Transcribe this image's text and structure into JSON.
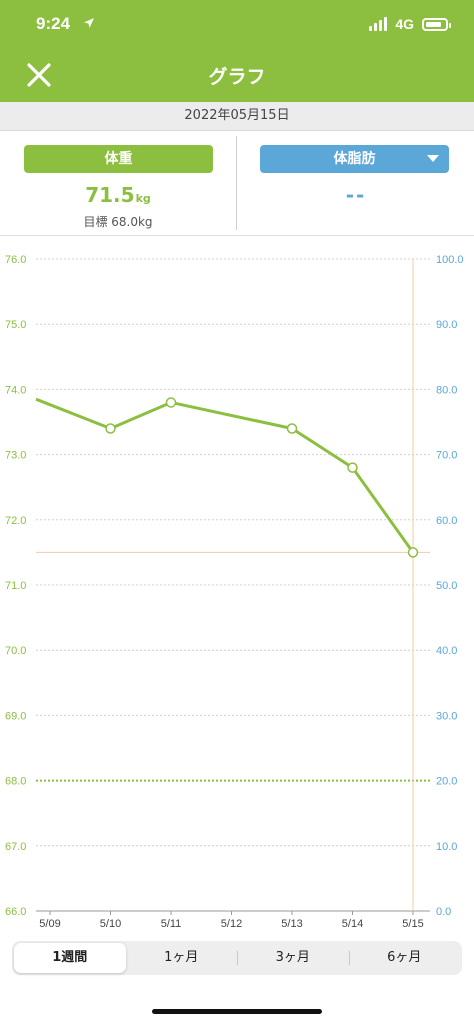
{
  "status": {
    "time": "9:24",
    "network": "4G",
    "location_icon": "location-arrow-icon"
  },
  "nav": {
    "title": "グラフ",
    "close_icon": "close-icon"
  },
  "date": "2022年05月15日",
  "weight": {
    "label": "体重",
    "value": "71.5",
    "unit": "kg",
    "goal": "目標 68.0kg"
  },
  "body_fat": {
    "label": "体脂肪",
    "value": "--",
    "dropdown_icon": "chevron-down-icon"
  },
  "colors": {
    "accent": "#8cbf3f",
    "fat": "#5ba7d8",
    "marker": "#f4c9a4"
  },
  "chart_data": {
    "type": "line",
    "categories": [
      "5/09",
      "5/10",
      "5/11",
      "5/12",
      "5/13",
      "5/14",
      "5/15"
    ],
    "series": [
      {
        "values": [
          73.85,
          73.4,
          73.8,
          null,
          73.4,
          72.8,
          71.5
        ],
        "color": "#8cbf3f"
      }
    ],
    "y_left": {
      "ticks": [
        "76.0",
        "75.0",
        "74.0",
        "73.0",
        "72.0",
        "71.0",
        "70.0",
        "69.0",
        "68.0",
        "67.0",
        "66.0"
      ],
      "ylim": [
        66,
        76
      ]
    },
    "y_right": {
      "ticks": [
        "100.0",
        "90.0",
        "80.0",
        "70.0",
        "60.0",
        "50.0",
        "40.0",
        "30.0",
        "20.0",
        "10.0",
        "0.0"
      ],
      "ylim": [
        0,
        100
      ]
    },
    "goal_line": 68.0,
    "current_line": 71.5,
    "selected_category": "5/15",
    "grid": true
  },
  "period_tabs": [
    {
      "label": "1週間",
      "active": true
    },
    {
      "label": "1ヶ月",
      "active": false
    },
    {
      "label": "3ヶ月",
      "active": false
    },
    {
      "label": "6ヶ月",
      "active": false
    }
  ]
}
